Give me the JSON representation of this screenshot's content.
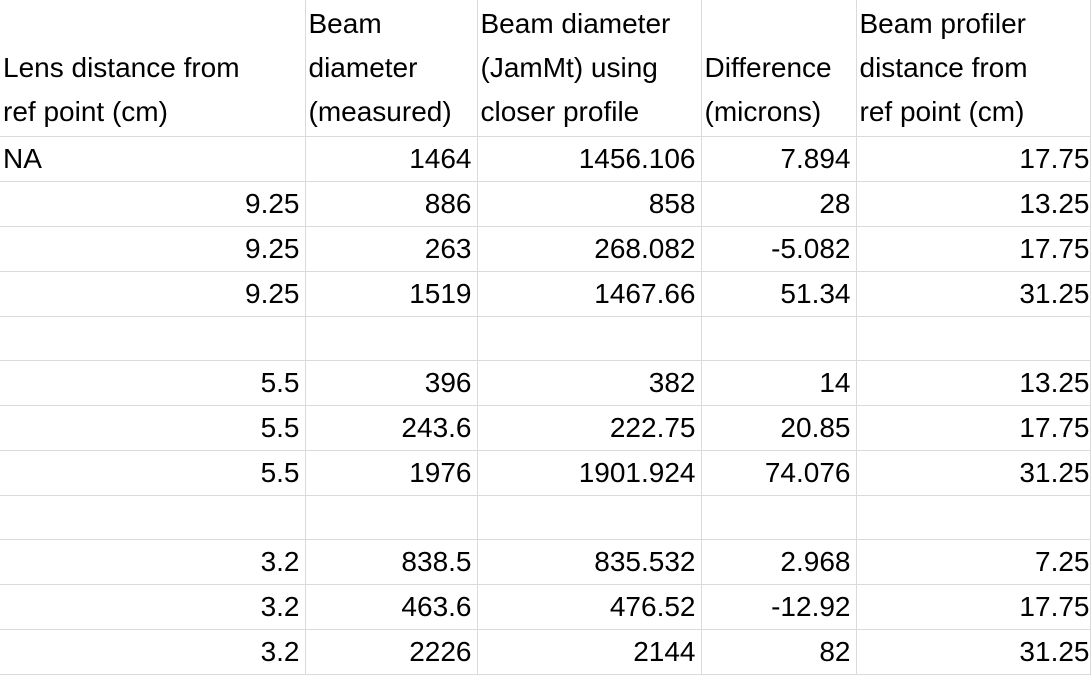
{
  "headers": [
    [
      "Lens distance from",
      "ref point (cm)"
    ],
    [
      "Beam",
      "diameter",
      "(measured)"
    ],
    [
      "Beam diameter",
      "(JamMt) using",
      "closer profile"
    ],
    [
      "Difference",
      "(microns)"
    ],
    [
      "Beam profiler",
      "distance from",
      "ref point (cm)"
    ]
  ],
  "rows": [
    [
      "NA",
      "1464",
      "1456.106",
      "7.894",
      "17.75"
    ],
    [
      "9.25",
      "886",
      "858",
      "28",
      "13.25"
    ],
    [
      "9.25",
      "263",
      "268.082",
      "-5.082",
      "17.75"
    ],
    [
      "9.25",
      "1519",
      "1467.66",
      "51.34",
      "31.25"
    ],
    [
      "",
      "",
      "",
      "",
      ""
    ],
    [
      "5.5",
      "396",
      "382",
      "14",
      "13.25"
    ],
    [
      "5.5",
      "243.6",
      "222.75",
      "20.85",
      "17.75"
    ],
    [
      "5.5",
      "1976",
      "1901.924",
      "74.076",
      "31.25"
    ],
    [
      "",
      "",
      "",
      "",
      ""
    ],
    [
      "3.2",
      "838.5",
      "835.532",
      "2.968",
      "7.25"
    ],
    [
      "3.2",
      "463.6",
      "476.52",
      "-12.92",
      "17.75"
    ],
    [
      "3.2",
      "2226",
      "2144",
      "82",
      "31.25"
    ]
  ]
}
